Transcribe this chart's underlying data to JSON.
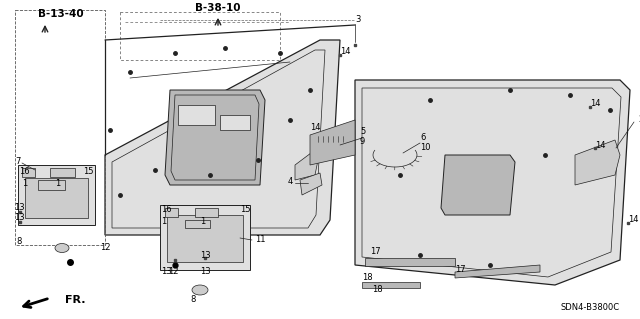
{
  "bg_color": "#ffffff",
  "diagram_code": "SDN4-B3800C",
  "ref_labels": [
    "B-13-40",
    "B-38-10"
  ],
  "figsize": [
    6.4,
    3.19
  ],
  "dpi": 100,
  "line_color": "#222222",
  "fill_color": "#e0e0e0",
  "fill_dark": "#b8b8b8",
  "fill_mid": "#cccccc"
}
